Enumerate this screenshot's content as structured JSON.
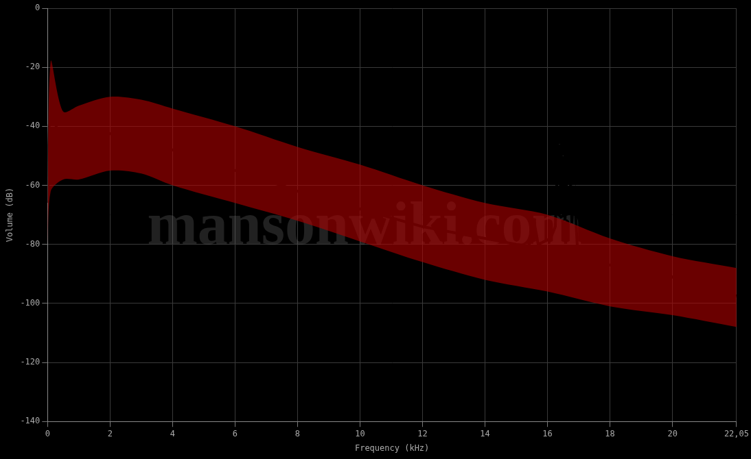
{
  "chart_data": {
    "type": "line",
    "x_label": "Frequency (kHz)",
    "y_label": "Volume (dB)",
    "watermark": "mansonwiki.com",
    "xlim": [
      0,
      22.05
    ],
    "xticks": [
      0,
      2,
      4,
      6,
      8,
      10,
      12,
      14,
      16,
      18,
      20,
      {
        "value": 22.05,
        "label": "22,05"
      }
    ],
    "ylim": [
      -140,
      0
    ],
    "yticks": [
      -140,
      -120,
      -100,
      -80,
      -60,
      -40,
      -20,
      0
    ],
    "grid": true,
    "x": [
      0,
      0.05,
      0.1,
      0.2,
      0.3,
      0.4,
      0.5,
      0.6,
      0.7,
      0.8,
      1.0,
      1.2,
      1.5,
      1.8,
      2.0,
      2.3,
      2.6,
      3.0,
      3.3,
      3.6,
      4.0,
      4.5,
      5.0,
      5.5,
      6.0,
      6.5,
      7.0,
      7.5,
      8.0,
      8.5,
      9.0,
      9.5,
      10.0,
      10.5,
      11.0,
      11.5,
      12.0,
      12.5,
      13.0,
      13.5,
      14.0,
      14.5,
      15.0,
      15.4,
      15.6,
      15.7,
      15.9,
      16.1,
      16.25,
      16.32,
      16.38,
      16.44,
      16.5,
      16.56,
      16.62,
      16.7,
      16.78,
      16.85,
      16.95,
      17.1,
      17.5,
      18.0,
      18.5,
      19.0,
      19.5,
      20.0,
      20.3,
      20.6,
      21.0,
      21.5,
      22.05
    ],
    "values": [
      -66,
      -40,
      -35,
      -37,
      -41,
      -44,
      -45,
      -44.5,
      -45.5,
      -44,
      -46,
      -45.5,
      -44,
      -43,
      -42.5,
      -43,
      -42.5,
      -44,
      -45,
      -46,
      -48,
      -49.5,
      -51.5,
      -53,
      -55,
      -56.5,
      -58.5,
      -60,
      -62,
      -63.5,
      -65,
      -66.5,
      -68,
      -69.5,
      -71,
      -72.5,
      -74,
      -75,
      -76,
      -77,
      -78,
      -79,
      -80,
      -80.5,
      -74,
      -80,
      -79,
      -78,
      -74,
      -52,
      -46,
      -70,
      -50,
      -72,
      -56,
      -49,
      -73,
      -60,
      -80,
      -83,
      -85,
      -87,
      -88,
      -89,
      -90,
      -91,
      -94,
      -95,
      -95.5,
      -96.5,
      -97.5
    ],
    "color": "#ffffff",
    "band": {
      "color": "#b00000",
      "x": [
        0,
        0.1,
        0.5,
        1,
        2,
        3,
        4,
        6,
        8,
        10,
        12,
        14,
        16,
        18,
        20,
        22.05
      ],
      "upper": [
        -75,
        -18,
        -35,
        -33,
        -30,
        -31,
        -34,
        -40,
        -47,
        -53,
        -60,
        -66,
        -70,
        -78,
        -84,
        -88
      ],
      "lower": [
        -80,
        -62,
        -58,
        -58,
        -55,
        -56,
        -60,
        -66,
        -72,
        -79,
        -86,
        -92,
        -96,
        -101,
        -104,
        -108
      ]
    }
  }
}
